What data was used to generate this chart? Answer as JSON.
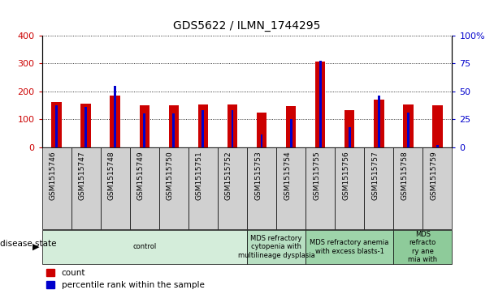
{
  "title": "GDS5622 / ILMN_1744295",
  "samples": [
    "GSM1515746",
    "GSM1515747",
    "GSM1515748",
    "GSM1515749",
    "GSM1515750",
    "GSM1515751",
    "GSM1515752",
    "GSM1515753",
    "GSM1515754",
    "GSM1515755",
    "GSM1515756",
    "GSM1515757",
    "GSM1515758",
    "GSM1515759"
  ],
  "counts": [
    160,
    155,
    185,
    150,
    150,
    152,
    152,
    122,
    147,
    305,
    132,
    170,
    152,
    150
  ],
  "percentile_ranks": [
    37,
    36,
    55,
    30,
    30,
    33,
    33,
    11,
    25,
    77,
    18,
    46,
    31,
    2
  ],
  "bar_color": "#cc0000",
  "percentile_color": "#0000cc",
  "ylim_left": [
    0,
    400
  ],
  "ylim_right": [
    0,
    100
  ],
  "yticks_left": [
    0,
    100,
    200,
    300,
    400
  ],
  "yticks_right": [
    0,
    25,
    50,
    75,
    100
  ],
  "yticklabels_right": [
    "0",
    "25",
    "50",
    "75",
    "100%"
  ],
  "disease_groups": [
    {
      "label": "control",
      "start": 0,
      "end": 7,
      "color": "#d4edda"
    },
    {
      "label": "MDS refractory\ncytopenia with\nmultilineage dysplasia",
      "start": 7,
      "end": 9,
      "color": "#b8dfc2"
    },
    {
      "label": "MDS refractory anemia\nwith excess blasts-1",
      "start": 9,
      "end": 12,
      "color": "#9ed4aa"
    },
    {
      "label": "MDS\nrefracto\nry ane\nmia with",
      "start": 12,
      "end": 14,
      "color": "#8ecb9a"
    }
  ],
  "disease_state_label": "disease state",
  "legend_count_label": "count",
  "legend_percentile_label": "percentile rank within the sample",
  "bar_color_red": "#cc0000",
  "bar_color_blue": "#0000cc",
  "bar_width": 0.35,
  "blue_bar_width": 0.08
}
